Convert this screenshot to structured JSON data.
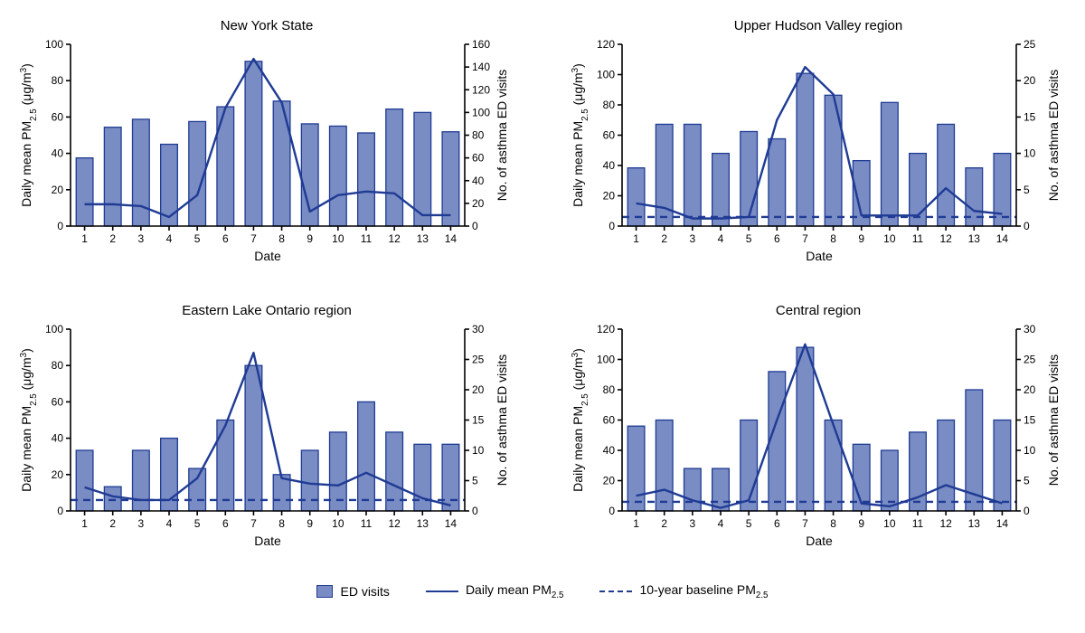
{
  "global": {
    "colors": {
      "bar_fill": "#7a8cc4",
      "bar_stroke": "#1f3b94",
      "line_color": "#1f3b94",
      "dash_color": "#1f3b94",
      "axis_color": "#000000",
      "tick_color": "#000000",
      "text_color": "#000000",
      "bg": "#ffffff"
    },
    "font": {
      "title_size": 15,
      "axis_label_size": 14,
      "tick_size": 12
    },
    "layout": {
      "bar_width": 0.6,
      "line_width": 2.4,
      "dash_width": 2.4,
      "dash_pattern": "8,6",
      "axis_width": 1.6
    },
    "x_label": "Date",
    "legend": {
      "ed_visits": "ED visits",
      "daily_pm": "Daily mean PM",
      "baseline_pm": "10-year baseline PM",
      "pm_sub": "2.5"
    },
    "x_ticks": [
      1,
      2,
      3,
      4,
      5,
      6,
      7,
      8,
      9,
      10,
      11,
      12,
      13,
      14
    ]
  },
  "panels": [
    {
      "title": "New York State",
      "y_left": {
        "label": "Daily mean PM|2.5| (μg/m|3|)",
        "min": 0,
        "max": 100,
        "step": 20
      },
      "y_right": {
        "label": "No. of asthma ED visits",
        "min": 0,
        "max": 160,
        "step": 20
      },
      "bars": [
        60,
        87,
        94,
        72,
        92,
        105,
        145,
        110,
        90,
        88,
        82,
        103,
        100,
        83
      ],
      "line": [
        12,
        12,
        11,
        5,
        17,
        65,
        92,
        68,
        8,
        17,
        19,
        18,
        6,
        6
      ],
      "baseline": null
    },
    {
      "title": "Upper Hudson Valley region",
      "y_left": {
        "label": "Daily mean PM|2.5| (μg/m|3|)",
        "min": 0,
        "max": 120,
        "step": 20
      },
      "y_right": {
        "label": "No. of asthma ED visits",
        "min": 0,
        "max": 25,
        "step": 5
      },
      "bars": [
        8,
        14,
        14,
        10,
        13,
        12,
        21,
        18,
        9,
        17,
        10,
        14,
        8,
        10
      ],
      "line": [
        15,
        12,
        5,
        5,
        6,
        70,
        105,
        87,
        7,
        7,
        7,
        25,
        10,
        8
      ],
      "baseline": 6
    },
    {
      "title": "Eastern Lake Ontario region",
      "y_left": {
        "label": "Daily mean PM|2.5| (μg/m|3|)",
        "min": 0,
        "max": 100,
        "step": 20
      },
      "y_right": {
        "label": "No. of asthma ED visits",
        "min": 0,
        "max": 30,
        "step": 5
      },
      "bars": [
        10,
        4,
        10,
        12,
        7,
        15,
        24,
        6,
        10,
        13,
        18,
        13,
        11,
        11
      ],
      "line": [
        13,
        8,
        6,
        6,
        18,
        47,
        87,
        18,
        15,
        14,
        21,
        14,
        7,
        3
      ],
      "baseline": 6
    },
    {
      "title": "Central region",
      "y_left": {
        "label": "Daily mean PM|2.5| (μg/m|3|)",
        "min": 0,
        "max": 120,
        "step": 20
      },
      "y_right": {
        "label": "No. of asthma ED visits",
        "min": 0,
        "max": 30,
        "step": 5
      },
      "bars": [
        14,
        15,
        7,
        7,
        15,
        23,
        27,
        15,
        11,
        10,
        13,
        15,
        20,
        15
      ],
      "line": [
        10,
        14,
        7,
        2,
        7,
        60,
        110,
        57,
        5,
        3,
        9,
        17,
        11,
        5
      ],
      "baseline": 6
    }
  ]
}
